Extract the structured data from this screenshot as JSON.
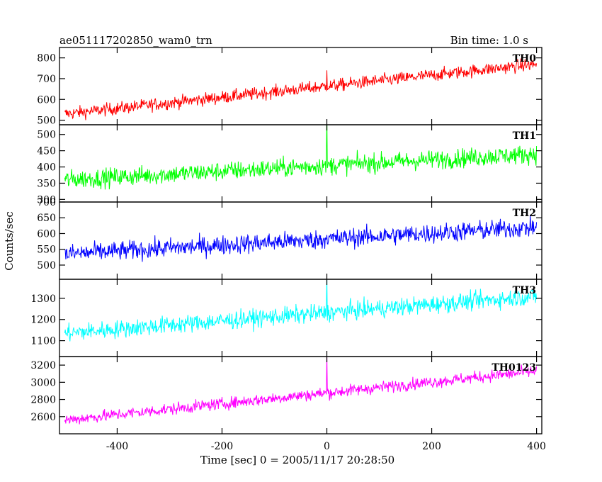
{
  "chart_data": {
    "type": "line",
    "title": "ae051117202850_wam0_trn",
    "bin_label": "Bin time: 1.0 s",
    "xlabel": "Time [sec] 0 = 2005/11/17 20:28:50",
    "ylabel": "Counts/sec",
    "xlim": [
      -510,
      410
    ],
    "x_range": [
      -500,
      400
    ],
    "x_ticks": [
      -400,
      -200,
      0,
      200,
      400
    ],
    "grid": false,
    "panels": [
      {
        "name": "TH0",
        "color": "#ff0000",
        "ylim": [
          478,
          850
        ],
        "y_ticks": [
          500,
          600,
          700,
          800
        ],
        "trend": {
          "start": 530,
          "end": 770
        },
        "noise": 40,
        "spike": 100
      },
      {
        "name": "TH1",
        "color": "#00ff00",
        "ylim": [
          292,
          530
        ],
        "y_ticks": [
          300,
          350,
          400,
          450,
          500
        ],
        "trend": {
          "start": 360,
          "end": 440
        },
        "noise": 38,
        "spike": 150
      },
      {
        "name": "TH2",
        "color": "#0000ff",
        "ylim": [
          455,
          700
        ],
        "y_ticks": [
          500,
          550,
          600,
          650,
          700
        ],
        "trend": {
          "start": 535,
          "end": 620
        },
        "noise": 40,
        "spike": 40
      },
      {
        "name": "TH3",
        "color": "#00ffff",
        "ylim": [
          1025,
          1390
        ],
        "y_ticks": [
          1100,
          1200,
          1300
        ],
        "trend": {
          "start": 1135,
          "end": 1310
        },
        "noise": 55,
        "spike": 200
      },
      {
        "name": "TH0123",
        "color": "#ff00ff",
        "ylim": [
          2400,
          3300
        ],
        "y_ticks": [
          2600,
          2800,
          3000,
          3200
        ],
        "trend": {
          "start": 2560,
          "end": 3130
        },
        "noise": 90,
        "spike": 450
      }
    ]
  }
}
